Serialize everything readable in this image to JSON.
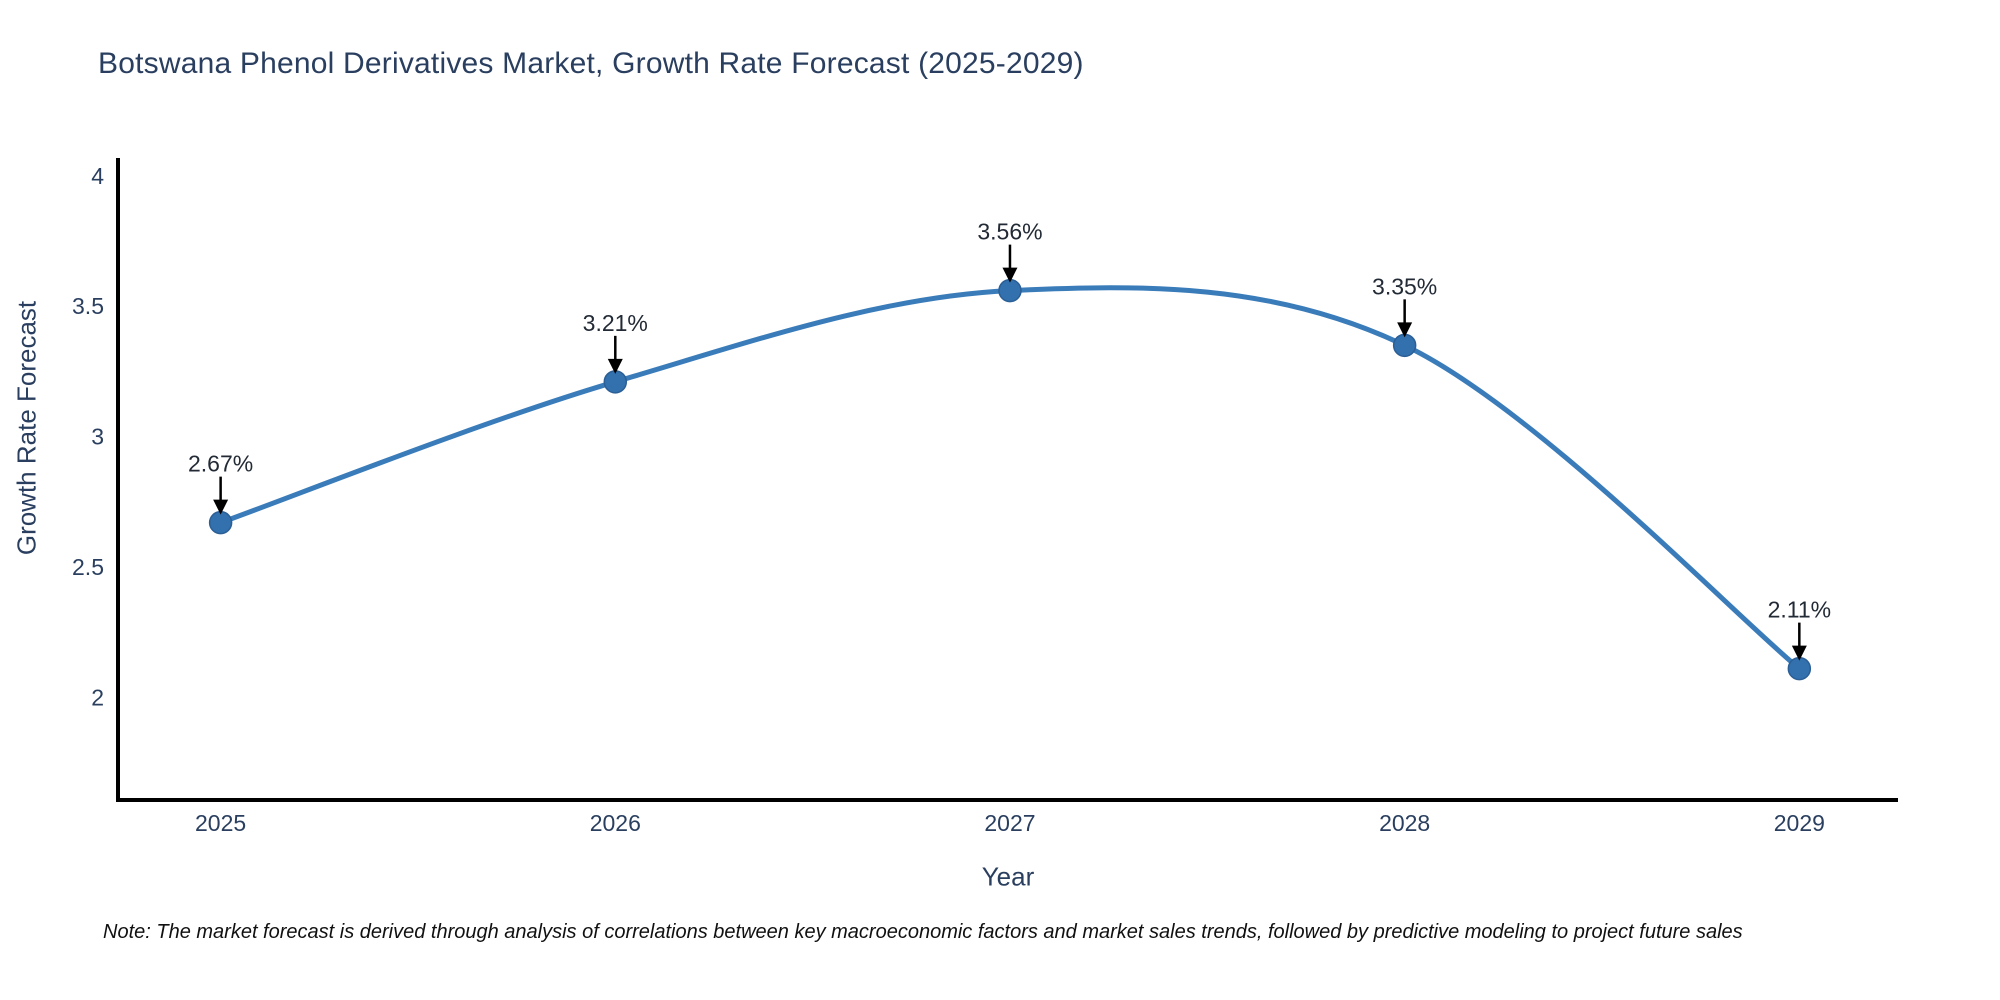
{
  "title": "Botswana Phenol Derivatives Market, Growth Rate Forecast (2025-2029)",
  "x_axis": {
    "label": "Year",
    "ticks": [
      "2025",
      "2026",
      "2027",
      "2028",
      "2029"
    ]
  },
  "y_axis": {
    "label": "Growth Rate Forecast",
    "ticks": [
      "4",
      "3.5",
      "3",
      "2.5",
      "2"
    ],
    "tick_values": [
      4,
      3.5,
      3,
      2.5,
      2
    ]
  },
  "footnote": "Note: The market forecast is derived through analysis of correlations between key macroeconomic factors and market sales trends, followed by predictive modeling to project future sales",
  "colors": {
    "line": "#3a7cba",
    "marker": "#3270ae",
    "marker_edge": "#2b5f96",
    "axis": "#000000",
    "title_text": "#2a3f5f",
    "tick_text": "#2a3f5f",
    "annotation_text": "#222a35",
    "arrow": "#000000",
    "note_text": "#111111",
    "background": "#ffffff"
  },
  "chart_data": {
    "type": "line",
    "title": "Botswana Phenol Derivatives Market, Growth Rate Forecast (2025-2029)",
    "xlabel": "Year",
    "ylabel": "Growth Rate Forecast",
    "x": [
      2025,
      2026,
      2027,
      2028,
      2029
    ],
    "values": [
      2.67,
      3.21,
      3.56,
      3.35,
      2.11
    ],
    "labels": [
      "2.67%",
      "3.21%",
      "3.56%",
      "3.35%",
      "2.11%"
    ],
    "xlim": [
      2024.74,
      2029.25
    ],
    "ylim": [
      1.606,
      4.061
    ],
    "line_shape": "spline",
    "markers": true,
    "grid": false,
    "legend_position": "none",
    "annotations": "value labels with downward arrows above each point"
  }
}
